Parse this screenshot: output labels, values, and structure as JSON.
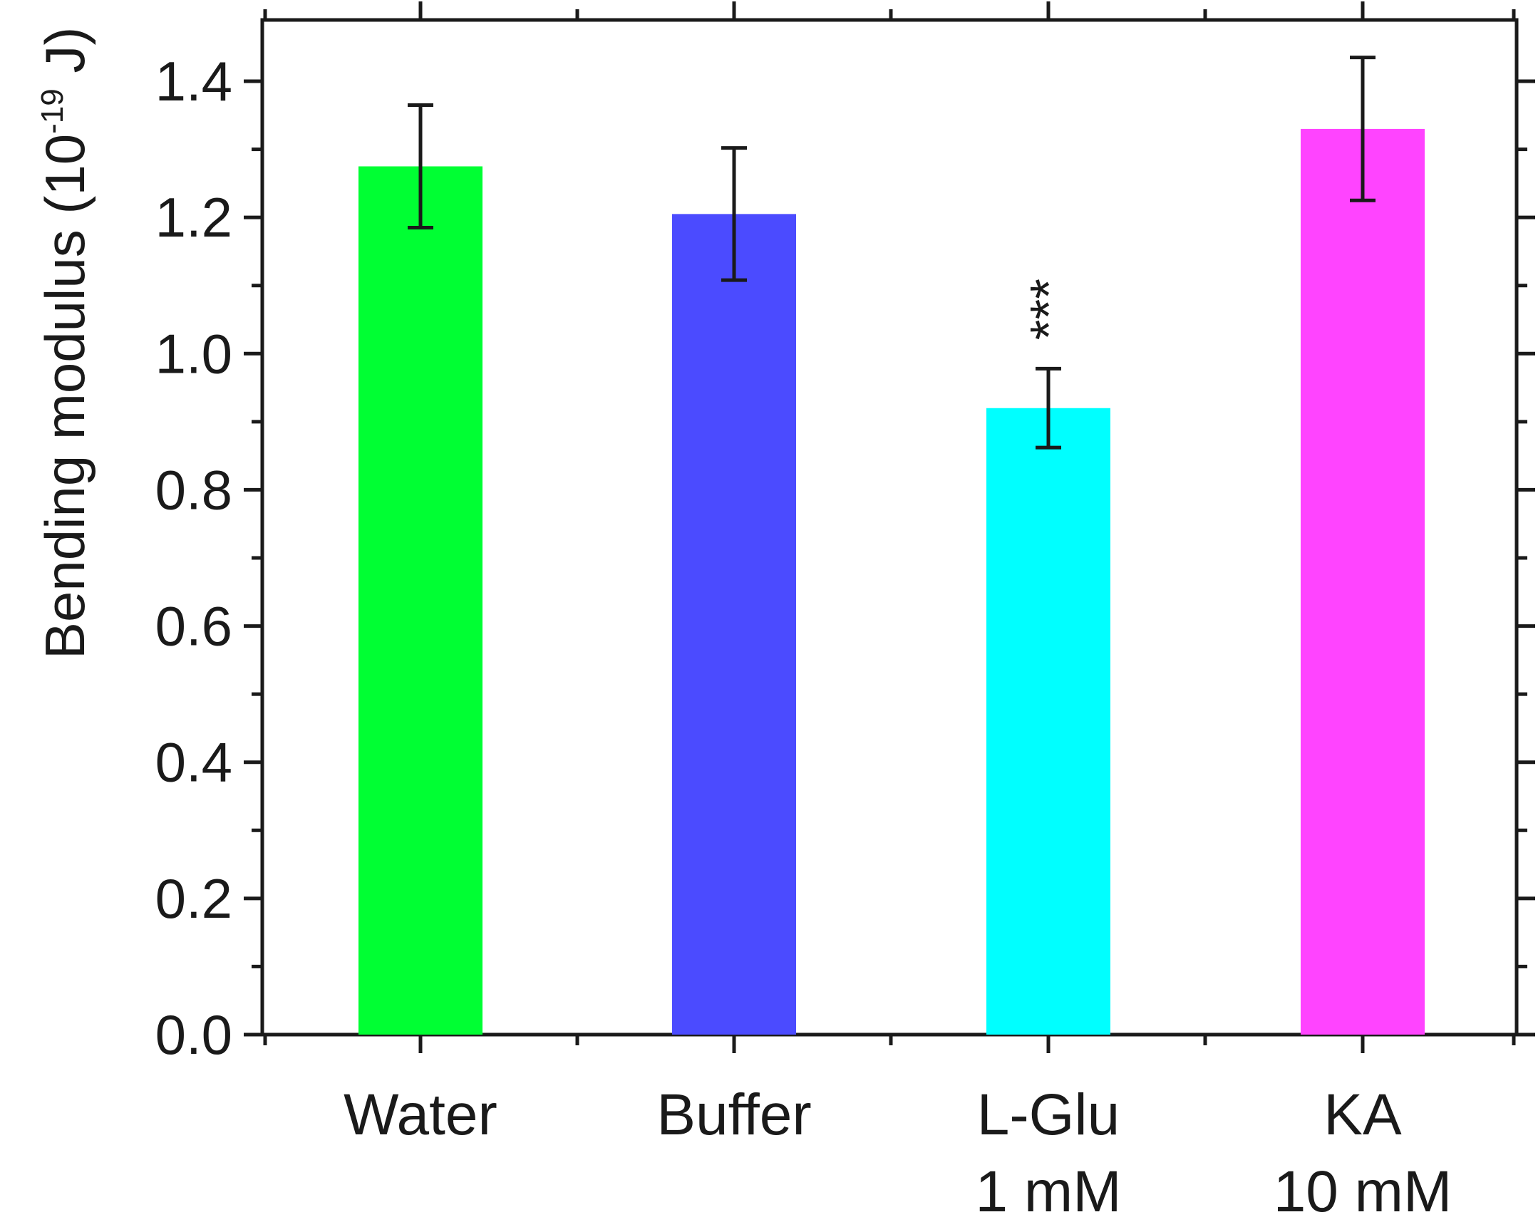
{
  "chart_data": {
    "type": "bar",
    "title": "",
    "xlabel": "",
    "ylabel": {
      "prefix": "Bending modulus (10",
      "exponent": "-19",
      "suffix": " J)"
    },
    "ylim": [
      0.0,
      1.49
    ],
    "yticks": [
      "0.0",
      "0.2",
      "0.4",
      "0.6",
      "0.8",
      "1.0",
      "1.2",
      "1.4"
    ],
    "ytick_values": [
      0.0,
      0.2,
      0.4,
      0.6,
      0.8,
      1.0,
      1.2,
      1.4
    ],
    "grid": false,
    "categories": [
      {
        "line1": "Water",
        "line2": ""
      },
      {
        "line1": "Buffer",
        "line2": ""
      },
      {
        "line1": "L-Glu",
        "line2": "1 mM"
      },
      {
        "line1": "KA",
        "line2": "10 mM"
      }
    ],
    "values": [
      1.275,
      1.205,
      0.92,
      1.33
    ],
    "errors": [
      0.09,
      0.097,
      0.058,
      0.105
    ],
    "colors": [
      "#00ff33",
      "#4b4bff",
      "#00ffff",
      "#ff44ff"
    ],
    "annotations": [
      {
        "category_index": 2,
        "text": "***"
      }
    ]
  }
}
